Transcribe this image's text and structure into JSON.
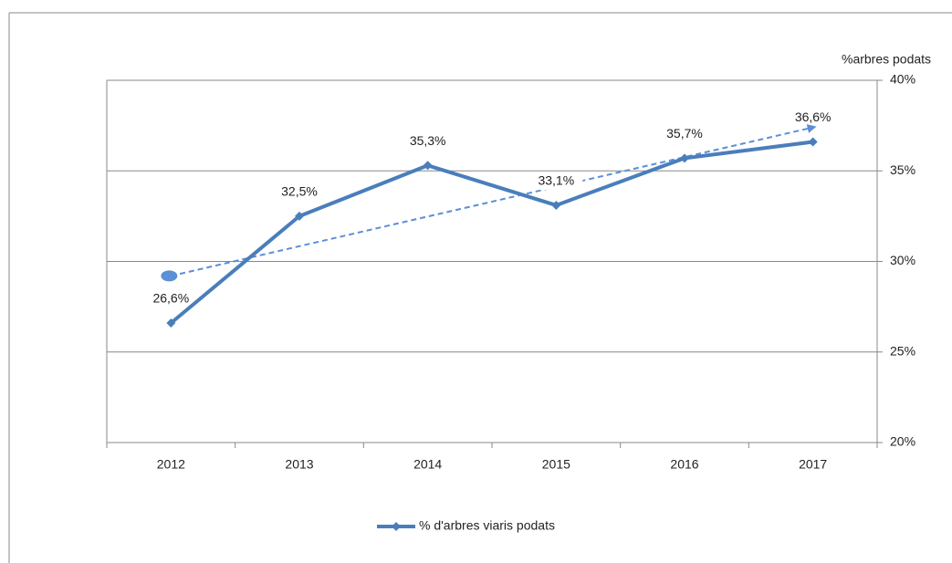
{
  "chart_data": {
    "type": "line",
    "y_axis_label": "%arbres podats",
    "categories": [
      "2012",
      "2013",
      "2014",
      "2015",
      "2016",
      "2017"
    ],
    "series": [
      {
        "name": "% d'arbres viaris podats",
        "color": "#4a7ebb",
        "values": [
          26.6,
          32.5,
          35.3,
          33.1,
          35.7,
          36.6
        ],
        "value_labels": [
          "26,6%",
          "32,5%",
          "35,3%",
          "33,1%",
          "35,7%",
          "36,6%"
        ]
      }
    ],
    "trendline": {
      "color": "#5b8fd6",
      "values": [
        29.2,
        37.4
      ]
    },
    "ylim": [
      20,
      40
    ],
    "yticks": [
      {
        "value": 20,
        "label": "20%"
      },
      {
        "value": 25,
        "label": "25%"
      },
      {
        "value": 30,
        "label": "30%"
      },
      {
        "value": 35,
        "label": "35%"
      },
      {
        "value": 40,
        "label": "40%"
      }
    ],
    "grid": true,
    "legend": "bottom"
  }
}
